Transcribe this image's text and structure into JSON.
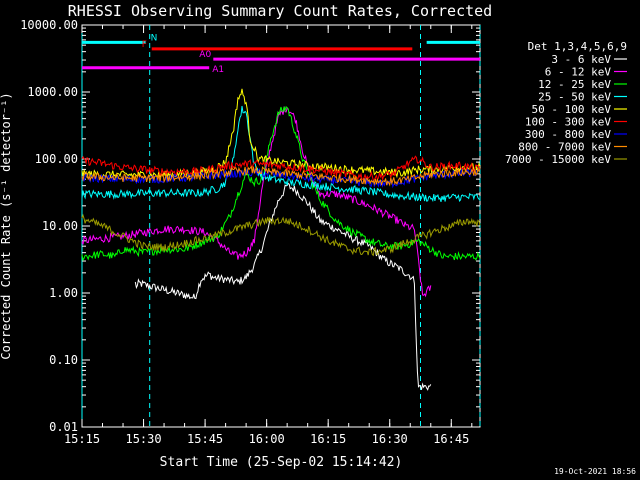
{
  "chart_data": {
    "type": "line",
    "title": "RHESSI Observing Summary Count Rates, Corrected",
    "ylabel": "Corrected Count Rate (s⁻¹ detector⁻¹)",
    "xlabel": "Start Time (25-Sep-02 15:14:42)",
    "timestamp": "19-Oct-2021 18:56",
    "yscale": "log",
    "ylim": [
      0.01,
      10000
    ],
    "y_ticks": [
      "0.01",
      "0.10",
      "1.00",
      "10.00",
      "100.00",
      "1000.00",
      "10000.00"
    ],
    "xlim_min": [
      0,
      97
    ],
    "x_ticks": [
      {
        "label": "15:15",
        "min": 0
      },
      {
        "label": "15:30",
        "min": 15
      },
      {
        "label": "15:45",
        "min": 30
      },
      {
        "label": "16:00",
        "min": 45
      },
      {
        "label": "16:15",
        "min": 60
      },
      {
        "label": "16:30",
        "min": 75
      },
      {
        "label": "16:45",
        "min": 90
      }
    ],
    "night_lines_min": [
      0,
      16.5,
      82.5,
      97
    ],
    "legend_title": "Det 1,3,4,5,6,9",
    "series": [
      {
        "name": "3 - 6 keV",
        "color": "#ffffff",
        "pts": [
          [
            13,
            1.4
          ],
          [
            13.4,
            1.2
          ],
          [
            13.8,
            1.4
          ],
          [
            27.5,
            0.85
          ],
          [
            29,
            1.6
          ],
          [
            31,
            1.9
          ],
          [
            32,
            1.7
          ],
          [
            35,
            1.6
          ],
          [
            38,
            1.45
          ],
          [
            40,
            1.7
          ],
          [
            42,
            2.6
          ],
          [
            44,
            5
          ],
          [
            46,
            12
          ],
          [
            48,
            25
          ],
          [
            50,
            40
          ],
          [
            52,
            35
          ],
          [
            55,
            22
          ],
          [
            58,
            12
          ],
          [
            62,
            9
          ],
          [
            66,
            6.5
          ],
          [
            70,
            5
          ],
          [
            74,
            3
          ],
          [
            77,
            2.4
          ],
          [
            80,
            1.8
          ],
          [
            81,
            1.5
          ],
          [
            81.8,
            0.05
          ],
          [
            82,
            0.04
          ],
          [
            85,
            0.04
          ]
        ]
      },
      {
        "name": "6 - 12 keV",
        "color": "#ff00ff",
        "pts": [
          [
            0,
            6
          ],
          [
            5,
            6.5
          ],
          [
            10,
            7
          ],
          [
            15,
            8
          ],
          [
            20,
            9
          ],
          [
            25,
            9
          ],
          [
            30,
            8
          ],
          [
            33,
            6
          ],
          [
            36,
            4
          ],
          [
            38,
            3.5
          ],
          [
            40,
            4
          ],
          [
            42,
            6
          ],
          [
            44,
            40
          ],
          [
            46,
            150
          ],
          [
            48,
            450
          ],
          [
            50,
            600
          ],
          [
            52,
            400
          ],
          [
            54,
            120
          ],
          [
            56,
            50
          ],
          [
            58,
            30
          ],
          [
            62,
            30
          ],
          [
            66,
            25
          ],
          [
            70,
            20
          ],
          [
            74,
            15
          ],
          [
            77,
            12
          ],
          [
            79,
            10
          ],
          [
            81,
            9
          ],
          [
            82,
            3
          ],
          [
            83,
            0.9
          ],
          [
            85,
            1.2
          ]
        ]
      },
      {
        "name": "12 - 25 keV",
        "color": "#00ff00",
        "pts": [
          [
            0,
            3.5
          ],
          [
            5,
            3.8
          ],
          [
            8,
            3.5
          ],
          [
            10,
            4.5
          ],
          [
            15,
            4
          ],
          [
            20,
            4.5
          ],
          [
            25,
            4.5
          ],
          [
            30,
            6
          ],
          [
            33,
            7
          ],
          [
            36,
            14
          ],
          [
            38,
            30
          ],
          [
            40,
            60
          ],
          [
            42,
            45
          ],
          [
            44,
            50
          ],
          [
            46,
            200
          ],
          [
            48,
            500
          ],
          [
            50,
            600
          ],
          [
            52,
            250
          ],
          [
            54,
            90
          ],
          [
            56,
            45
          ],
          [
            58,
            25
          ],
          [
            62,
            12
          ],
          [
            66,
            8
          ],
          [
            70,
            6
          ],
          [
            74,
            5
          ],
          [
            78,
            5
          ],
          [
            82,
            6
          ],
          [
            85,
            4.5
          ],
          [
            88,
            3.5
          ],
          [
            92,
            3.5
          ],
          [
            97,
            3.5
          ]
        ]
      },
      {
        "name": "25 - 50 keV",
        "color": "#00ffff",
        "pts": [
          [
            0,
            30
          ],
          [
            10,
            30
          ],
          [
            20,
            31
          ],
          [
            28,
            31
          ],
          [
            30,
            32
          ],
          [
            33,
            36
          ],
          [
            35,
            45
          ],
          [
            37,
            100
          ],
          [
            38,
            300
          ],
          [
            39,
            550
          ],
          [
            40,
            500
          ],
          [
            41,
            200
          ],
          [
            42,
            80
          ],
          [
            44,
            55
          ],
          [
            48,
            48
          ],
          [
            52,
            44
          ],
          [
            58,
            40
          ],
          [
            64,
            36
          ],
          [
            70,
            33
          ],
          [
            74,
            30
          ],
          [
            78,
            28
          ],
          [
            82,
            27
          ],
          [
            86,
            26
          ],
          [
            92,
            27
          ],
          [
            97,
            27
          ]
        ]
      },
      {
        "name": "50 - 100 keV",
        "color": "#ffff00",
        "pts": [
          [
            0,
            60
          ],
          [
            10,
            58
          ],
          [
            20,
            58
          ],
          [
            28,
            62
          ],
          [
            32,
            70
          ],
          [
            35,
            90
          ],
          [
            37,
            300
          ],
          [
            38,
            800
          ],
          [
            39,
            1000
          ],
          [
            40,
            700
          ],
          [
            41,
            200
          ],
          [
            43,
            100
          ],
          [
            48,
            90
          ],
          [
            55,
            80
          ],
          [
            65,
            70
          ],
          [
            72,
            65
          ],
          [
            78,
            62
          ],
          [
            82,
            70
          ],
          [
            86,
            70
          ],
          [
            92,
            75
          ],
          [
            97,
            75
          ]
        ]
      },
      {
        "name": "100 - 300 keV",
        "color": "#ff0000",
        "pts": [
          [
            0,
            95
          ],
          [
            3,
            90
          ],
          [
            10,
            75
          ],
          [
            20,
            65
          ],
          [
            28,
            65
          ],
          [
            32,
            72
          ],
          [
            37,
            82
          ],
          [
            42,
            85
          ],
          [
            48,
            80
          ],
          [
            55,
            72
          ],
          [
            62,
            62
          ],
          [
            68,
            55
          ],
          [
            72,
            55
          ],
          [
            76,
            60
          ],
          [
            80,
            90
          ],
          [
            82,
            100
          ],
          [
            85,
            75
          ],
          [
            92,
            80
          ],
          [
            97,
            70
          ]
        ]
      },
      {
        "name": "300 - 800 keV",
        "color": "#0000ff",
        "pts": [
          [
            0,
            52
          ],
          [
            10,
            50
          ],
          [
            20,
            50
          ],
          [
            30,
            55
          ],
          [
            37,
            60
          ],
          [
            42,
            63
          ],
          [
            48,
            58
          ],
          [
            55,
            52
          ],
          [
            62,
            48
          ],
          [
            70,
            44
          ],
          [
            75,
            43
          ],
          [
            80,
            48
          ],
          [
            84,
            55
          ],
          [
            90,
            60
          ],
          [
            97,
            62
          ]
        ]
      },
      {
        "name": "800 - 7000 keV",
        "color": "#ff8c00",
        "pts": [
          [
            0,
            55
          ],
          [
            10,
            52
          ],
          [
            20,
            52
          ],
          [
            30,
            57
          ],
          [
            37,
            65
          ],
          [
            42,
            68
          ],
          [
            48,
            62
          ],
          [
            55,
            57
          ],
          [
            62,
            52
          ],
          [
            70,
            48
          ],
          [
            75,
            46
          ],
          [
            80,
            50
          ],
          [
            84,
            58
          ],
          [
            90,
            62
          ],
          [
            97,
            65
          ]
        ]
      },
      {
        "name": "7000 - 15000 keV",
        "color": "#999900",
        "pts": [
          [
            0,
            13
          ],
          [
            5,
            10
          ],
          [
            10,
            7
          ],
          [
            15,
            5
          ],
          [
            20,
            4.8
          ],
          [
            25,
            5.5
          ],
          [
            30,
            6.5
          ],
          [
            35,
            8
          ],
          [
            40,
            10
          ],
          [
            45,
            12
          ],
          [
            50,
            12
          ],
          [
            55,
            9
          ],
          [
            60,
            6
          ],
          [
            65,
            4.5
          ],
          [
            70,
            4
          ],
          [
            75,
            4.5
          ],
          [
            80,
            6
          ],
          [
            85,
            8
          ],
          [
            90,
            10
          ],
          [
            94,
            12
          ],
          [
            97,
            11
          ]
        ]
      }
    ],
    "flags": [
      {
        "label": "N",
        "color": "#00ffff",
        "segments": [
          [
            0,
            15.5
          ],
          [
            84,
            97
          ]
        ],
        "value": 5500
      },
      {
        "label": "F",
        "color": "#ff0000",
        "segments": [
          [
            17,
            80.5
          ]
        ],
        "value": 4400
      },
      {
        "label": "A0",
        "color": "#ff00ff",
        "segments": [
          [
            32,
            97
          ]
        ],
        "value": 3100
      },
      {
        "label": "A1",
        "color": "#ff00ff",
        "segments": [
          [
            0,
            31
          ]
        ],
        "value": 2300
      }
    ]
  }
}
